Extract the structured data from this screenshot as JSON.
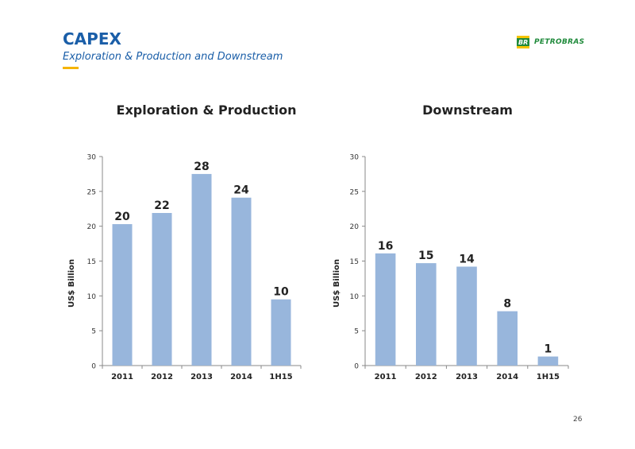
{
  "header": {
    "title": "CAPEX",
    "subtitle": "Exploration & Production and Downstream"
  },
  "logo": {
    "text": "PETROBRAS",
    "mark": "BR"
  },
  "page_number": "26",
  "colors": {
    "bar": "#98b6dc",
    "title": "#1a5ea8",
    "accent": "#f5b400",
    "logo": "#1f8a3b"
  },
  "chart_data": [
    {
      "type": "bar",
      "title": "Exploration & Production",
      "ylabel": "US$ Billion",
      "xlabel": "",
      "categories": [
        "2011",
        "2012",
        "2013",
        "2014",
        "1H15"
      ],
      "values": [
        20.3,
        21.9,
        27.5,
        24.1,
        9.5
      ],
      "data_labels": [
        "20",
        "22",
        "28",
        "24",
        "10"
      ],
      "ylim": [
        0,
        30
      ],
      "yticks": [
        0,
        5,
        10,
        15,
        20,
        25,
        30
      ],
      "grid": false,
      "legend": "none"
    },
    {
      "type": "bar",
      "title": "Downstream",
      "ylabel": "US$ Billion",
      "xlabel": "",
      "categories": [
        "2011",
        "2012",
        "2013",
        "2014",
        "1H15"
      ],
      "values": [
        16.1,
        14.7,
        14.2,
        7.8,
        1.3
      ],
      "data_labels": [
        "16",
        "15",
        "14",
        "8",
        "1"
      ],
      "ylim": [
        0,
        30
      ],
      "yticks": [
        0,
        5,
        10,
        15,
        20,
        25,
        30
      ],
      "grid": false,
      "legend": "none"
    }
  ]
}
